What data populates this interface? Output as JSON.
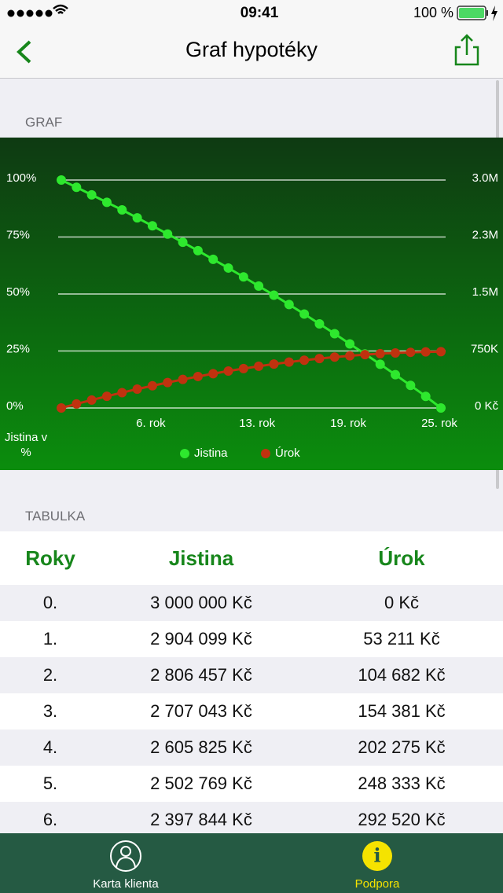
{
  "status": {
    "time": "09:41",
    "battery": "100 %"
  },
  "nav": {
    "title": "Graf hypotéky"
  },
  "sections": {
    "graph": "GRAF",
    "table": "TABULKA"
  },
  "chart_data": {
    "type": "line",
    "y_label": "Jistina v %",
    "x": [
      0,
      1,
      2,
      3,
      4,
      5,
      6,
      7,
      8,
      9,
      10,
      11,
      12,
      13,
      14,
      15,
      16,
      17,
      18,
      19,
      20,
      21,
      22,
      23,
      24,
      25
    ],
    "xlim": [
      0,
      25
    ],
    "xticks": [
      {
        "value": 6,
        "label": "6. rok"
      },
      {
        "value": 13,
        "label": "13. rok"
      },
      {
        "value": 19,
        "label": "19. rok"
      },
      {
        "value": 25,
        "label": "25. rok"
      }
    ],
    "ylim": [
      0,
      100
    ],
    "yticks": [
      {
        "value": 0,
        "label": "0%"
      },
      {
        "value": 25,
        "label": "25%"
      },
      {
        "value": 50,
        "label": "50%"
      },
      {
        "value": 75,
        "label": "75%"
      },
      {
        "value": 100,
        "label": "100%"
      }
    ],
    "y2lim": [
      0,
      3000000
    ],
    "y2ticks": [
      {
        "value": 0,
        "label": "0 Kč"
      },
      {
        "value": 750000,
        "label": "750K"
      },
      {
        "value": 1500000,
        "label": "1.5M"
      },
      {
        "value": 2250000,
        "label": "2.3M"
      },
      {
        "value": 3000000,
        "label": "3.0M"
      }
    ],
    "grid": true,
    "series": [
      {
        "name": "Jistina",
        "color": "#2ee82e",
        "values": [
          100,
          96.8,
          93.5,
          90.2,
          86.9,
          83.4,
          79.9,
          76.3,
          72.7,
          69.0,
          65.2,
          61.4,
          57.5,
          53.5,
          49.5,
          45.4,
          41.2,
          36.9,
          32.6,
          28.1,
          23.7,
          19.2,
          14.6,
          9.9,
          5.1,
          0
        ]
      },
      {
        "name": "Úrok",
        "color": "#c0320f",
        "axis": "y2",
        "values": [
          0,
          53211,
          104682,
          154381,
          202275,
          248333,
          292520,
          335000,
          375700,
          414400,
          451100,
          485800,
          518500,
          549100,
          577600,
          603900,
          628100,
          650000,
          669600,
          686900,
          701900,
          714500,
          724700,
          732500,
          737800,
          740500
        ]
      }
    ]
  },
  "table": {
    "header": [
      "Roky",
      "Jistina",
      "Úrok"
    ],
    "rows": [
      [
        "0.",
        "3 000 000 Kč",
        "0 Kč"
      ],
      [
        "1.",
        "2 904 099 Kč",
        "53 211 Kč"
      ],
      [
        "2.",
        "2 806 457 Kč",
        "104 682 Kč"
      ],
      [
        "3.",
        "2 707 043 Kč",
        "154 381 Kč"
      ],
      [
        "4.",
        "2 605 825 Kč",
        "202 275 Kč"
      ],
      [
        "5.",
        "2 502 769 Kč",
        "248 333 Kč"
      ],
      [
        "6.",
        "2 397 844 Kč",
        "292 520 Kč"
      ]
    ]
  },
  "tabs": [
    "Karta klienta",
    "Podpora"
  ]
}
